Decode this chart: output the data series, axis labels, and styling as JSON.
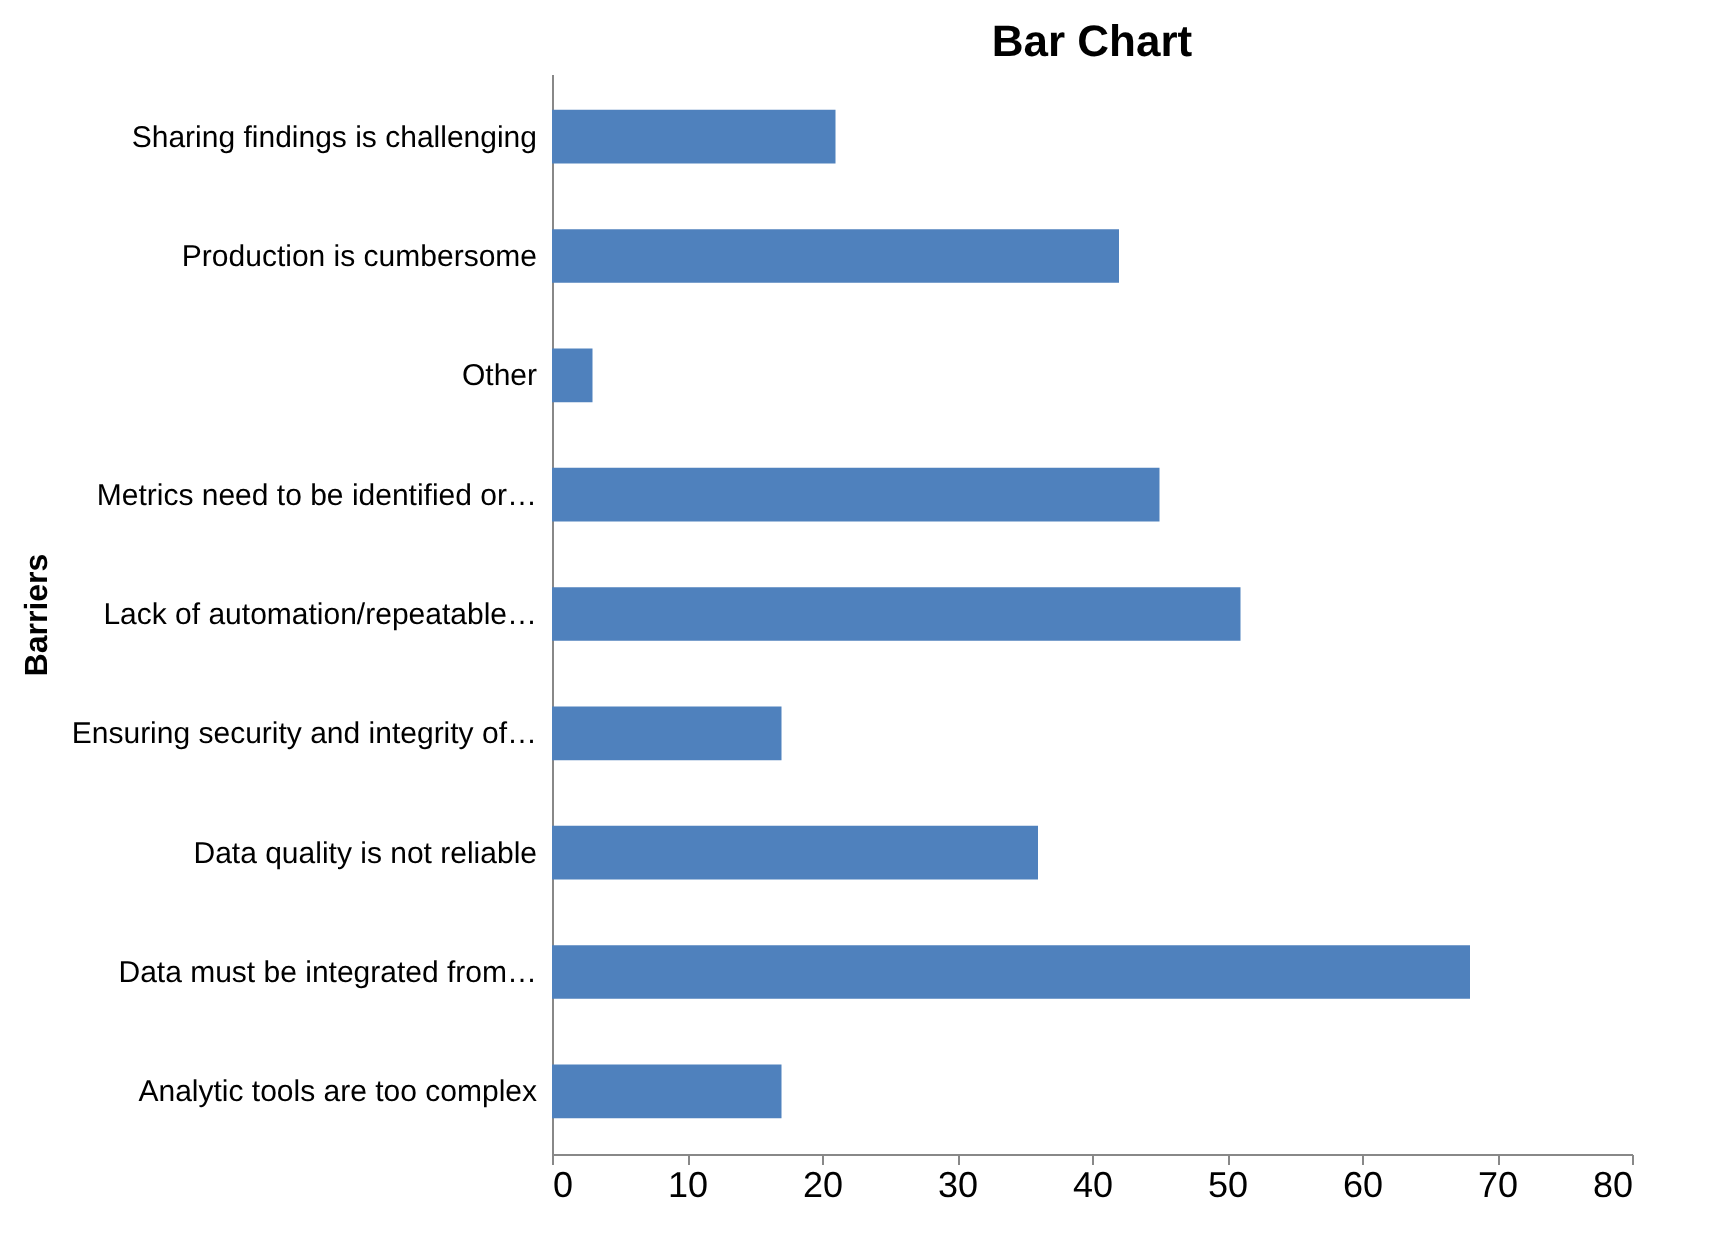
{
  "chart_data": {
    "type": "bar",
    "orientation": "horizontal",
    "title": "Bar Chart",
    "ylabel": "Barriers",
    "categories": [
      "Sharing findings is challenging",
      "Production is cumbersome",
      "Other",
      "Metrics need to be identified or…",
      "Lack of automation/repeatable…",
      "Ensuring security and integrity of…",
      "Data quality is not reliable",
      "Data must be integrated from…",
      "Analytic tools are too complex"
    ],
    "values": [
      21,
      42,
      3,
      45,
      51,
      17,
      36,
      68,
      17
    ],
    "color": "#4f81bd",
    "xlim": [
      0,
      80
    ],
    "xticks": [
      0,
      10,
      20,
      30,
      40,
      50,
      60,
      70,
      80
    ],
    "grid": false
  }
}
